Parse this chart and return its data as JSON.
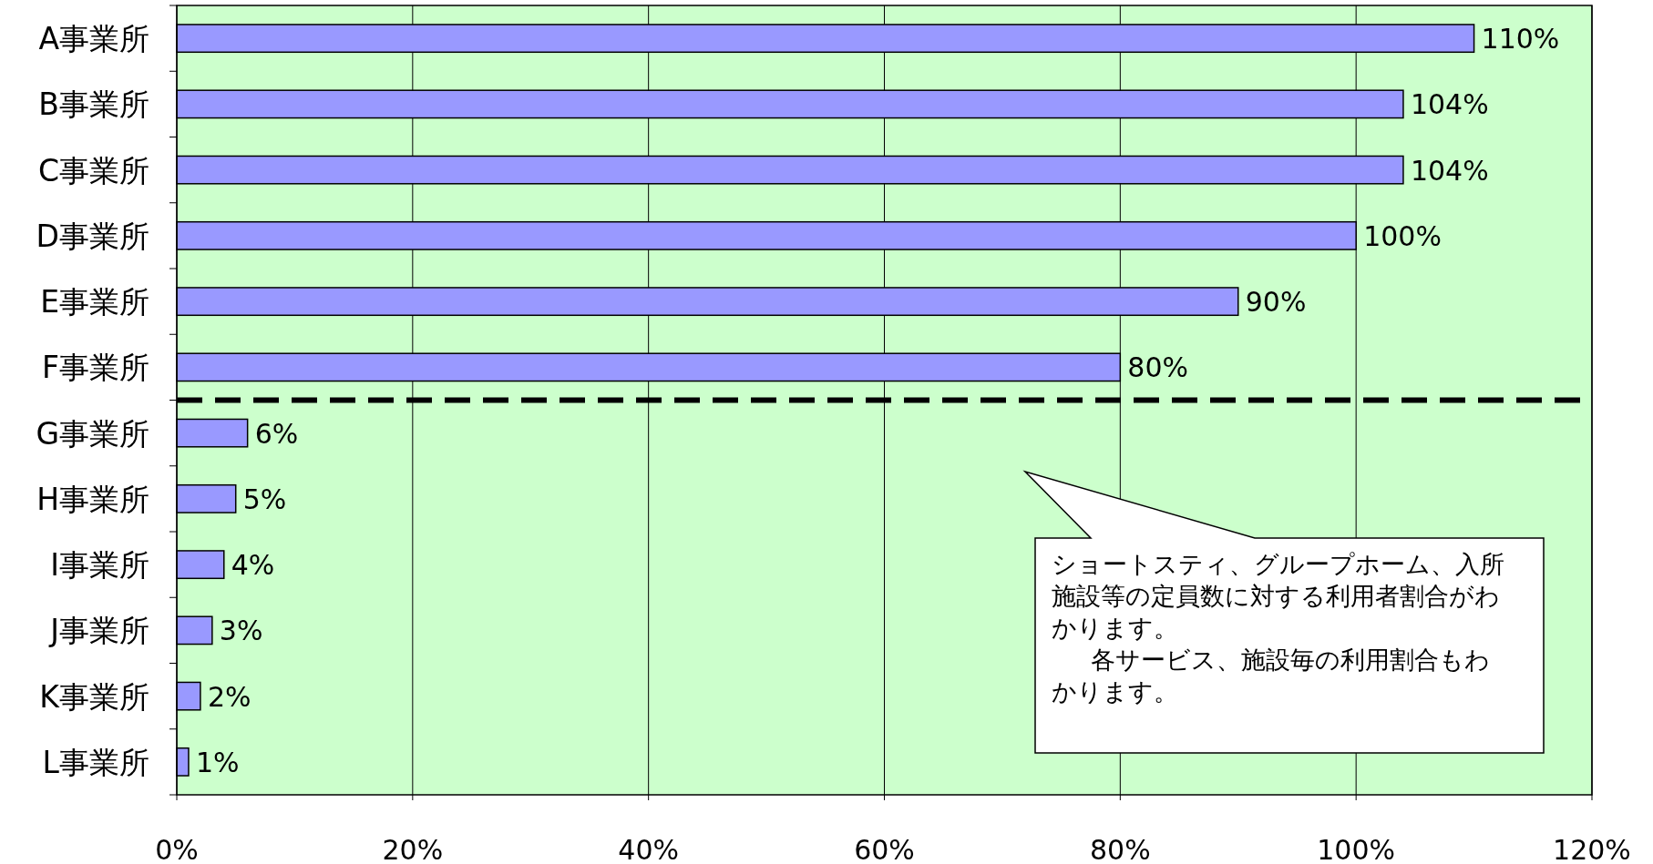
{
  "chart_data": {
    "type": "bar",
    "orientation": "horizontal",
    "categories": [
      "A事業所",
      "B事業所",
      "C事業所",
      "D事業所",
      "E事業所",
      "F事業所",
      "G事業所",
      "H事業所",
      "I事業所",
      "J事業所",
      "K事業所",
      "L事業所"
    ],
    "values": [
      110,
      104,
      104,
      100,
      90,
      80,
      6,
      5,
      4,
      3,
      2,
      1
    ],
    "value_labels": [
      "110%",
      "104%",
      "104%",
      "100%",
      "90%",
      "80%",
      "6%",
      "5%",
      "4%",
      "3%",
      "2%",
      "1%"
    ],
    "color": "#9999ff",
    "xlim": [
      0,
      120
    ],
    "xticks": [
      {
        "value": 0,
        "label": "0%"
      },
      {
        "value": 20,
        "label": "20%"
      },
      {
        "value": 40,
        "label": "40%"
      },
      {
        "value": 60,
        "label": "60%"
      },
      {
        "value": 80,
        "label": "80%"
      },
      {
        "value": 100,
        "label": "100%"
      },
      {
        "value": 120,
        "label": "120%"
      }
    ],
    "grid": "x",
    "ref_lines": [
      {
        "axis": "y",
        "value": "F事業所",
        "color": "#000000",
        "line_style": "dashed"
      }
    ],
    "annotations": [
      "ショートスティ、グループホーム、入所施設等の定員数に対する利用者割合がわかります。",
      "各サービス、施設毎の利用割合もわかります。"
    ]
  }
}
